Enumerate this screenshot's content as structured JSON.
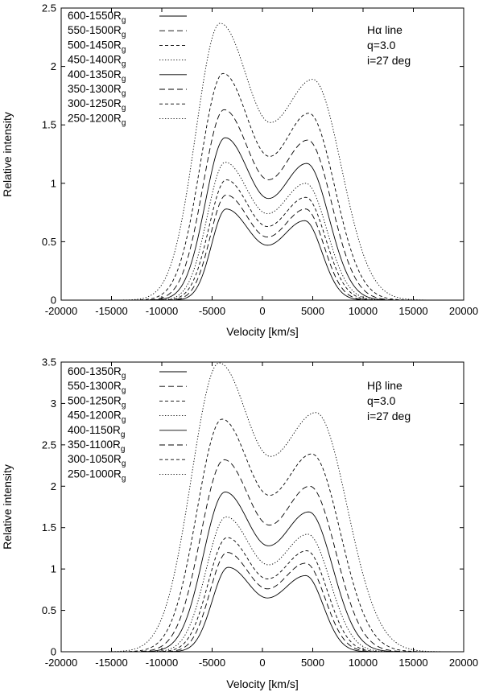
{
  "chart_data": [
    {
      "type": "line",
      "annotation": [
        "Hα line",
        "q=3.0",
        "i=27 deg"
      ],
      "xlabel": "Velocity [km/s]",
      "ylabel": "Relative intensity",
      "xlim": [
        -20000,
        20000
      ],
      "ylim": [
        0,
        2.5
      ],
      "xticks": [
        -20000,
        -15000,
        -10000,
        -5000,
        0,
        5000,
        10000,
        15000,
        20000
      ],
      "yticks": [
        0,
        0.5,
        1,
        1.5,
        2,
        2.5
      ],
      "legend_position": "top-left",
      "series": [
        {
          "name": "600-1550R",
          "sub": "g",
          "dash": "solid",
          "peak_left": 0.78,
          "peak_right": 0.68,
          "valley": 0.47,
          "v_left": -3600,
          "v_right": 4200,
          "v_valley": 500,
          "v_edge_left": -7100,
          "v_edge_right": 8300
        },
        {
          "name": "550-1500R",
          "sub": "g",
          "dash": "dashed",
          "peak_left": 0.9,
          "peak_right": 0.78,
          "valley": 0.54,
          "v_left": -3600,
          "v_right": 4300,
          "v_valley": 500,
          "v_edge_left": -7400,
          "v_edge_right": 8600
        },
        {
          "name": "500-1450R",
          "sub": "g",
          "dash": "short",
          "peak_left": 1.03,
          "peak_right": 0.88,
          "valley": 0.63,
          "v_left": -3600,
          "v_right": 4300,
          "v_valley": 500,
          "v_edge_left": -7700,
          "v_edge_right": 9000
        },
        {
          "name": "450-1400R",
          "sub": "g",
          "dash": "dotted",
          "peak_left": 1.18,
          "peak_right": 1.0,
          "valley": 0.74,
          "v_left": -3700,
          "v_right": 4300,
          "v_valley": 500,
          "v_edge_left": -8000,
          "v_edge_right": 9300
        },
        {
          "name": "400-1350R",
          "sub": "g",
          "dash": "solid",
          "peak_left": 1.39,
          "peak_right": 1.17,
          "valley": 0.87,
          "v_left": -3700,
          "v_right": 4400,
          "v_valley": 600,
          "v_edge_left": -8400,
          "v_edge_right": 9700
        },
        {
          "name": "350-1300R",
          "sub": "g",
          "dash": "dashed",
          "peak_left": 1.63,
          "peak_right": 1.37,
          "valley": 1.03,
          "v_left": -3800,
          "v_right": 4500,
          "v_valley": 600,
          "v_edge_left": -8800,
          "v_edge_right": 10200
        },
        {
          "name": "300-1250R",
          "sub": "g",
          "dash": "short",
          "peak_left": 1.94,
          "peak_right": 1.6,
          "valley": 1.23,
          "v_left": -3900,
          "v_right": 4600,
          "v_valley": 700,
          "v_edge_left": -9300,
          "v_edge_right": 10800
        },
        {
          "name": "250-1200R",
          "sub": "g",
          "dash": "dotted",
          "peak_left": 2.37,
          "peak_right": 1.89,
          "valley": 1.52,
          "v_left": -4200,
          "v_right": 5000,
          "v_valley": 800,
          "v_edge_left": -10000,
          "v_edge_right": 11800
        }
      ]
    },
    {
      "type": "line",
      "annotation": [
        "Hβ line",
        "q=3.0",
        "i=27 deg"
      ],
      "xlabel": "Velocity [km/s]",
      "ylabel": "Relative intensity",
      "xlim": [
        -20000,
        20000
      ],
      "ylim": [
        0,
        3.5
      ],
      "xticks": [
        -20000,
        -15000,
        -10000,
        -5000,
        0,
        5000,
        10000,
        15000,
        20000
      ],
      "yticks": [
        0,
        0.5,
        1,
        1.5,
        2,
        2.5,
        3,
        3.5
      ],
      "legend_position": "top-left",
      "series": [
        {
          "name": "600-1350R",
          "sub": "g",
          "dash": "solid",
          "peak_left": 1.02,
          "peak_right": 0.92,
          "valley": 0.65,
          "v_left": -3400,
          "v_right": 4300,
          "v_valley": 500,
          "v_edge_left": -7200,
          "v_edge_right": 8500
        },
        {
          "name": "550-1300R",
          "sub": "g",
          "dash": "dashed",
          "peak_left": 1.2,
          "peak_right": 1.07,
          "valley": 0.76,
          "v_left": -3500,
          "v_right": 4300,
          "v_valley": 500,
          "v_edge_left": -7600,
          "v_edge_right": 8900
        },
        {
          "name": "500-1250R",
          "sub": "g",
          "dash": "short",
          "peak_left": 1.38,
          "peak_right": 1.22,
          "valley": 0.88,
          "v_left": -3500,
          "v_right": 4400,
          "v_valley": 500,
          "v_edge_left": -8000,
          "v_edge_right": 9300
        },
        {
          "name": "450-1200R",
          "sub": "g",
          "dash": "dotted",
          "peak_left": 1.63,
          "peak_right": 1.42,
          "valley": 1.05,
          "v_left": -3600,
          "v_right": 4500,
          "v_valley": 600,
          "v_edge_left": -8400,
          "v_edge_right": 9800
        },
        {
          "name": "400-1150R",
          "sub": "g",
          "dash": "solid",
          "peak_left": 1.93,
          "peak_right": 1.69,
          "valley": 1.28,
          "v_left": -3700,
          "v_right": 4600,
          "v_valley": 600,
          "v_edge_left": -8900,
          "v_edge_right": 10300
        },
        {
          "name": "350-1100R",
          "sub": "g",
          "dash": "dashed",
          "peak_left": 2.32,
          "peak_right": 2.0,
          "valley": 1.53,
          "v_left": -3800,
          "v_right": 4700,
          "v_valley": 700,
          "v_edge_left": -9400,
          "v_edge_right": 10900
        },
        {
          "name": "300-1050R",
          "sub": "g",
          "dash": "short",
          "peak_left": 2.81,
          "peak_right": 2.39,
          "valley": 1.89,
          "v_left": -4000,
          "v_right": 4900,
          "v_valley": 700,
          "v_edge_left": -10000,
          "v_edge_right": 11700
        },
        {
          "name": "250-1000R",
          "sub": "g",
          "dash": "dotted",
          "peak_left": 3.49,
          "peak_right": 2.89,
          "valley": 2.36,
          "v_left": -4300,
          "v_right": 5300,
          "v_valley": 800,
          "v_edge_left": -10900,
          "v_edge_right": 12800
        }
      ]
    }
  ]
}
